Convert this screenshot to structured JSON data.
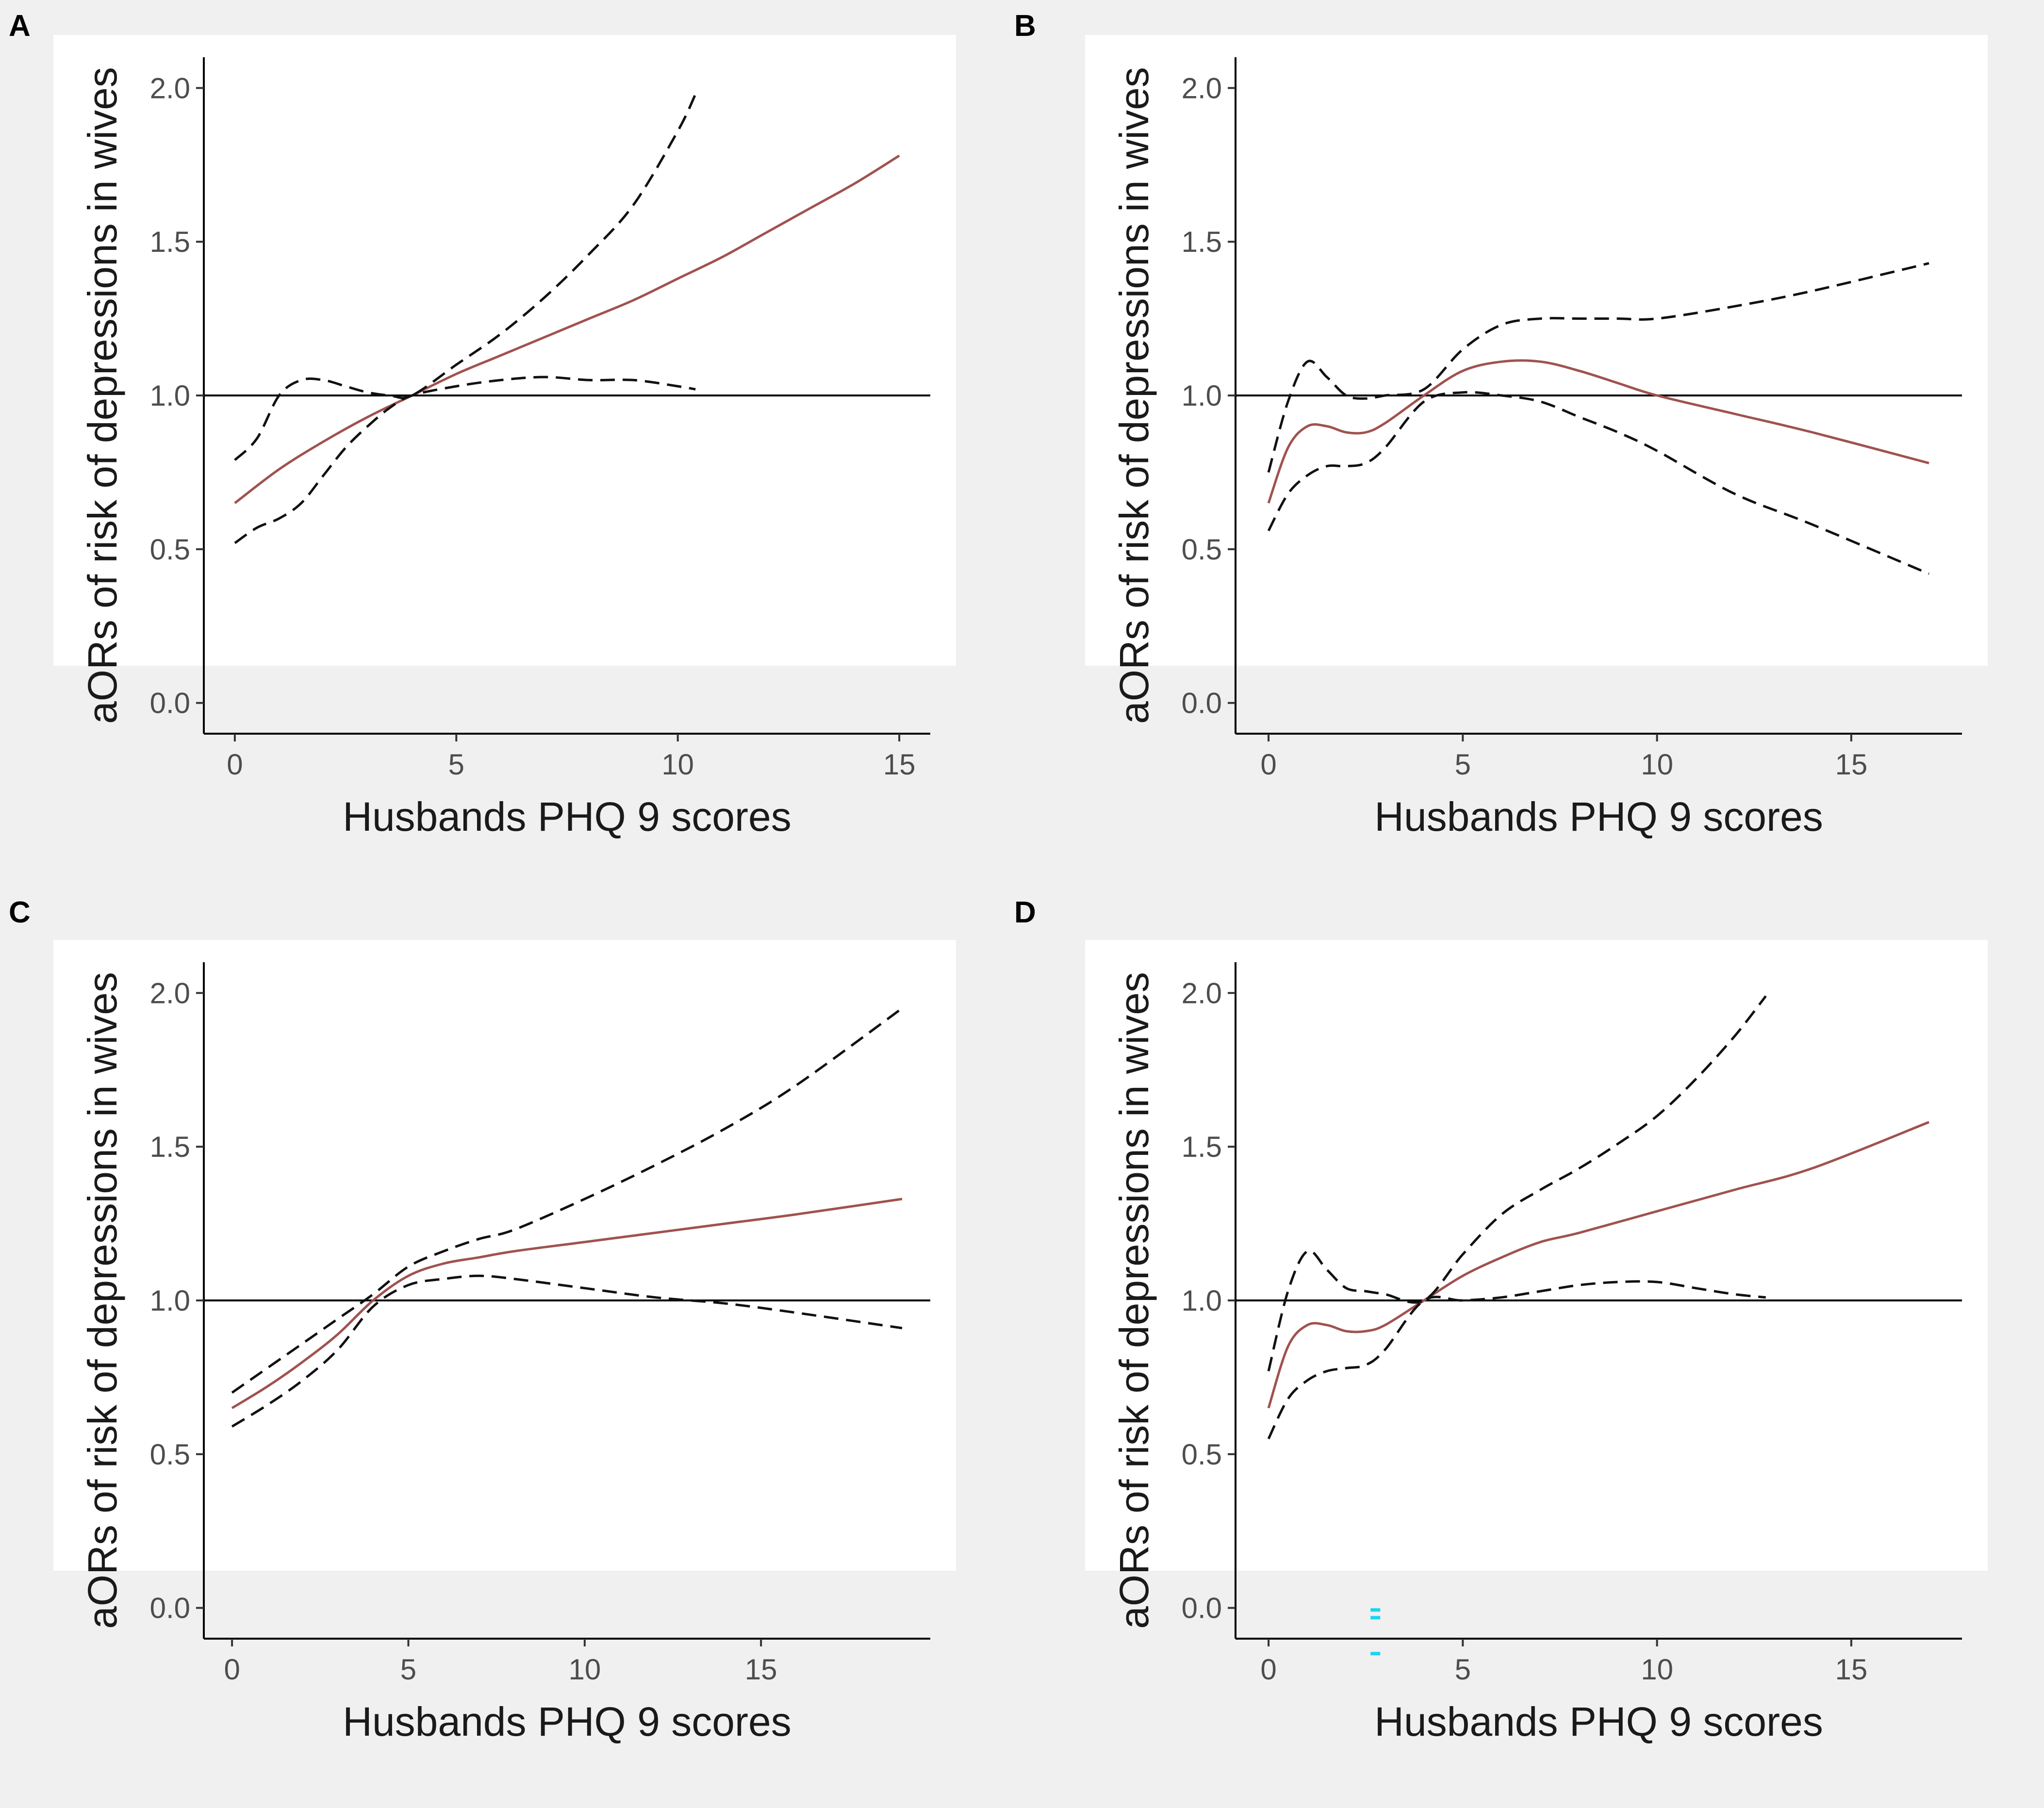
{
  "figure": {
    "colors": {
      "estimate": "#a0524f",
      "ci": "#111111",
      "reference": "#000000",
      "axis": "#000000",
      "background": "#ffffff",
      "marker": "#19d4f0"
    }
  },
  "chart_data": [
    {
      "panel": "A",
      "type": "line",
      "xlabel": "Husbands PHQ 9 scores",
      "ylabel": "aORs of risk of depressions in wives",
      "xlim": [
        -0.7,
        15.7
      ],
      "ylim": [
        -0.1,
        2.1
      ],
      "xticks": [
        0,
        5,
        10,
        15
      ],
      "xtick_labels": [
        "0",
        "5",
        "10",
        "15"
      ],
      "yticks": [
        0.0,
        0.5,
        1.0,
        1.5,
        2.0
      ],
      "ytick_labels": [
        "0.0",
        "0.5",
        "1.0",
        "1.5",
        "2.0"
      ],
      "reference_line": 1.0,
      "series": [
        {
          "name": "aOR",
          "style": "solid",
          "x": [
            0,
            1,
            2,
            3,
            4,
            5,
            6,
            7,
            8,
            9,
            10,
            11,
            12,
            13,
            14,
            15
          ],
          "y": [
            0.65,
            0.76,
            0.85,
            0.93,
            1.0,
            1.07,
            1.13,
            1.19,
            1.25,
            1.31,
            1.38,
            1.45,
            1.53,
            1.61,
            1.69,
            1.78
          ]
        },
        {
          "name": "Upper 95% CI",
          "style": "dashed",
          "x": [
            0,
            0.5,
            1,
            1.5,
            2,
            2.5,
            3,
            3.5,
            4,
            5,
            6,
            7,
            8,
            9,
            10,
            10.4
          ],
          "y": [
            0.79,
            0.86,
            1.0,
            1.05,
            1.05,
            1.03,
            1.01,
            1.0,
            1.0,
            1.1,
            1.2,
            1.32,
            1.46,
            1.62,
            1.86,
            1.98
          ]
        },
        {
          "name": "Lower 95% CI",
          "style": "dashed",
          "x": [
            0,
            0.5,
            1,
            1.5,
            2,
            2.5,
            3,
            3.5,
            4,
            5,
            6,
            7,
            8,
            9,
            10,
            10.4
          ],
          "y": [
            0.52,
            0.57,
            0.6,
            0.65,
            0.74,
            0.83,
            0.9,
            0.96,
            1.0,
            1.03,
            1.05,
            1.06,
            1.05,
            1.05,
            1.03,
            1.02
          ]
        }
      ]
    },
    {
      "panel": "B",
      "type": "line",
      "xlabel": "Husbands PHQ 9 scores",
      "ylabel": "aORs of risk of depressions in wives",
      "xlim": [
        -0.85,
        17.85
      ],
      "ylim": [
        -0.1,
        2.1
      ],
      "xticks": [
        0,
        5,
        10,
        15
      ],
      "xtick_labels": [
        "0",
        "5",
        "10",
        "15"
      ],
      "yticks": [
        0.0,
        0.5,
        1.0,
        1.5,
        2.0
      ],
      "ytick_labels": [
        "0.0",
        "0.5",
        "1.0",
        "1.5",
        "2.0"
      ],
      "reference_line": 1.0,
      "series": [
        {
          "name": "aOR",
          "style": "solid",
          "x": [
            0,
            0.5,
            1,
            1.5,
            2,
            2.5,
            3,
            4,
            5,
            6,
            7,
            8,
            9,
            10,
            12,
            14,
            17
          ],
          "y": [
            0.65,
            0.83,
            0.9,
            0.9,
            0.88,
            0.88,
            0.91,
            1.0,
            1.08,
            1.11,
            1.11,
            1.08,
            1.04,
            1.0,
            0.94,
            0.88,
            0.78
          ]
        },
        {
          "name": "Upper 95% CI",
          "style": "dashed",
          "x": [
            0,
            0.5,
            1,
            1.5,
            2,
            2.5,
            3,
            4,
            5,
            6,
            7,
            8,
            9,
            10,
            12,
            14,
            17
          ],
          "y": [
            0.75,
            0.98,
            1.11,
            1.06,
            1.0,
            0.99,
            1.0,
            1.02,
            1.15,
            1.23,
            1.25,
            1.25,
            1.25,
            1.25,
            1.29,
            1.34,
            1.43
          ]
        },
        {
          "name": "Lower 95% CI",
          "style": "dashed",
          "x": [
            0,
            0.5,
            1,
            1.5,
            2,
            2.5,
            3,
            4,
            5,
            6,
            7,
            8,
            9,
            10,
            12,
            14,
            17
          ],
          "y": [
            0.56,
            0.68,
            0.74,
            0.77,
            0.77,
            0.78,
            0.83,
            0.98,
            1.01,
            1.0,
            0.98,
            0.93,
            0.88,
            0.82,
            0.68,
            0.58,
            0.42
          ]
        }
      ]
    },
    {
      "panel": "C",
      "type": "line",
      "xlabel": "Husbands PHQ 9 scores",
      "ylabel": "aORs of risk of depressions in wives",
      "xlim": [
        -0.8,
        19.8
      ],
      "ylim": [
        -0.1,
        2.1
      ],
      "xticks": [
        0,
        5,
        10,
        15
      ],
      "xtick_labels": [
        "0",
        "5",
        "10",
        "15"
      ],
      "yticks": [
        0.0,
        0.5,
        1.0,
        1.5,
        2.0
      ],
      "ytick_labels": [
        "0.0",
        "0.5",
        "1.0",
        "1.5",
        "2.0"
      ],
      "reference_line": 1.0,
      "series": [
        {
          "name": "aOR",
          "style": "solid",
          "x": [
            0,
            1,
            2,
            3,
            4,
            5,
            6,
            7,
            8,
            10,
            12,
            14,
            16,
            19
          ],
          "y": [
            0.65,
            0.72,
            0.8,
            0.89,
            1.0,
            1.08,
            1.12,
            1.14,
            1.16,
            1.19,
            1.22,
            1.25,
            1.28,
            1.33
          ]
        },
        {
          "name": "Upper 95% CI",
          "style": "dashed",
          "x": [
            0,
            1,
            2,
            3,
            4,
            5,
            6,
            7,
            8,
            10,
            12,
            14,
            16,
            19
          ],
          "y": [
            0.7,
            0.78,
            0.86,
            0.94,
            1.02,
            1.11,
            1.16,
            1.2,
            1.23,
            1.33,
            1.44,
            1.56,
            1.7,
            1.95
          ]
        },
        {
          "name": "Lower 95% CI",
          "style": "dashed",
          "x": [
            0,
            1,
            2,
            3,
            4,
            5,
            6,
            7,
            8,
            10,
            12,
            14,
            16,
            19
          ],
          "y": [
            0.59,
            0.66,
            0.74,
            0.84,
            0.98,
            1.05,
            1.07,
            1.08,
            1.07,
            1.04,
            1.01,
            0.99,
            0.96,
            0.91
          ]
        }
      ]
    },
    {
      "panel": "D",
      "type": "line",
      "xlabel": "Husbands PHQ 9 scores",
      "ylabel": "aORs of risk of depressions in wives",
      "xlim": [
        -0.85,
        17.85
      ],
      "ylim": [
        -0.1,
        2.1
      ],
      "xticks": [
        0,
        5,
        10,
        15
      ],
      "xtick_labels": [
        "0",
        "5",
        "10",
        "15"
      ],
      "yticks": [
        0.0,
        0.5,
        1.0,
        1.5,
        2.0
      ],
      "ytick_labels": [
        "0.0",
        "0.5",
        "1.0",
        "1.5",
        "2.0"
      ],
      "reference_line": 1.0,
      "series": [
        {
          "name": "aOR",
          "style": "solid",
          "x": [
            0,
            0.5,
            1,
            1.5,
            2,
            2.5,
            3,
            4,
            5,
            6,
            7,
            8,
            10,
            12,
            14,
            17
          ],
          "y": [
            0.65,
            0.85,
            0.92,
            0.92,
            0.9,
            0.9,
            0.92,
            1.0,
            1.08,
            1.14,
            1.19,
            1.22,
            1.29,
            1.36,
            1.43,
            1.58
          ]
        },
        {
          "name": "Upper 95% CI",
          "style": "dashed",
          "x": [
            0,
            0.5,
            1,
            1.5,
            2,
            2.5,
            3,
            4,
            5,
            6,
            7,
            8,
            9,
            10,
            11,
            12,
            12.8
          ],
          "y": [
            0.77,
            1.03,
            1.16,
            1.1,
            1.04,
            1.03,
            1.02,
            1.0,
            1.15,
            1.28,
            1.36,
            1.43,
            1.51,
            1.6,
            1.72,
            1.86,
            1.99
          ]
        },
        {
          "name": "Lower 95% CI",
          "style": "dashed",
          "x": [
            0,
            0.5,
            1,
            1.5,
            2,
            2.5,
            3,
            4,
            5,
            6,
            7,
            8,
            9,
            10,
            11,
            12,
            12.8
          ],
          "y": [
            0.55,
            0.68,
            0.74,
            0.77,
            0.78,
            0.79,
            0.84,
            1.0,
            1.0,
            1.01,
            1.03,
            1.05,
            1.06,
            1.06,
            1.04,
            1.02,
            1.01
          ]
        }
      ]
    }
  ]
}
